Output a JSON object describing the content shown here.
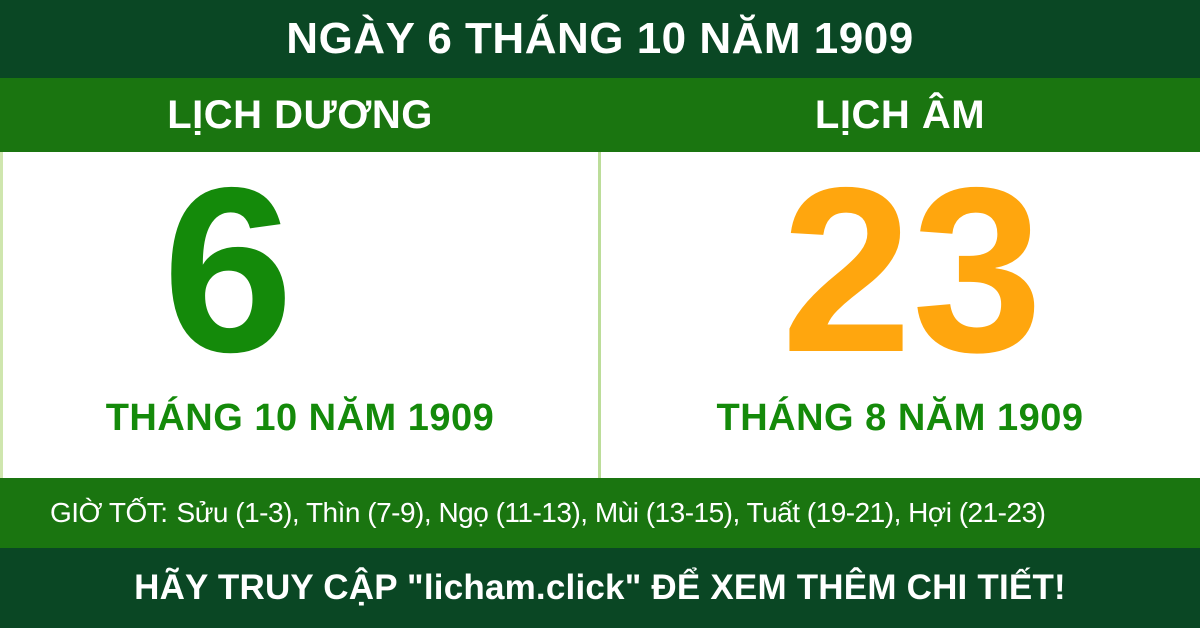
{
  "colors": {
    "dark_green": "#0a4724",
    "band_green": "#1a7510",
    "day_green": "#148a0a",
    "day_orange": "#ffa60e",
    "divider_green": "#bcdd9a",
    "text_white": "#ffffff"
  },
  "header": {
    "title": "NGÀY 6 THÁNG 10 NĂM 1909"
  },
  "calendar": {
    "solar": {
      "label": "LỊCH DƯƠNG",
      "day": "6",
      "month_year": "THÁNG 10 NĂM 1909"
    },
    "lunar": {
      "label": "LỊCH ÂM",
      "day": "23",
      "month_year": "THÁNG 8 NĂM 1909"
    }
  },
  "good_hours": {
    "label": "GIỜ TỐT:",
    "hours": "Sửu (1-3), Thìn (7-9), Ngọ (11-13), Mùi (13-15), Tuất (19-21), Hợi (21-23)"
  },
  "footer": {
    "cta": "HÃY TRUY CẬP \"licham.click\" ĐỂ XEM THÊM CHI TIẾT!"
  }
}
